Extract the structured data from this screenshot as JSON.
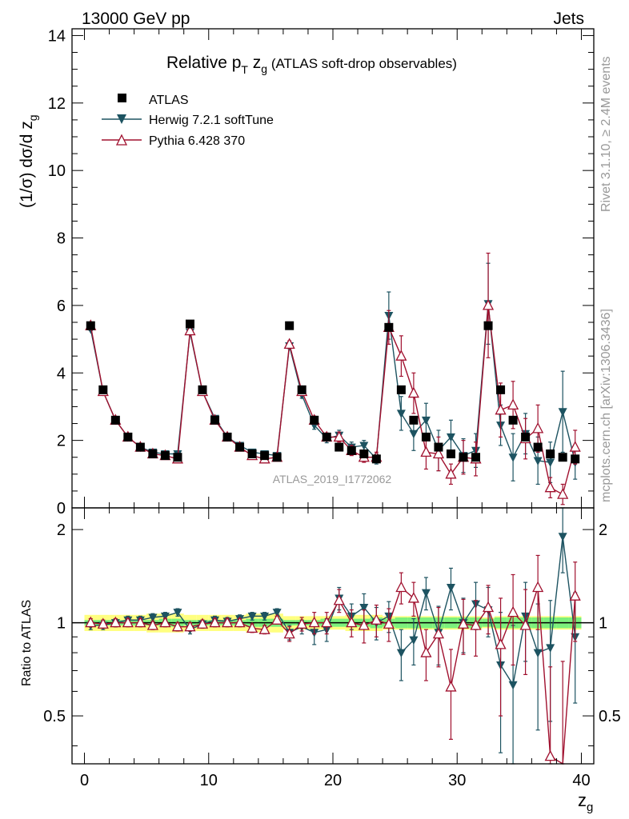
{
  "header": {
    "left": "13000 GeV pp",
    "right": "Jets"
  },
  "chart_data": {
    "type": "scatter",
    "title_main": "Relative p",
    "title_sub_T": "T",
    "title_z": " z",
    "title_sub_g": "g",
    "title_rest": " (ATLAS soft-drop observables)",
    "watermark": "ATLAS_2019_I1772062",
    "side_label_top": "Rivet 3.1.10, ≥ 2.4M events",
    "side_label_bottom": "mcplots.cern.ch [arXiv:1306.3436]",
    "ylabel_main": "(1/σ) dσ/d z",
    "ylabel_main_sub": "g",
    "ylabel_ratio": "Ratio to ATLAS",
    "xlabel": "z",
    "xlabel_sub": "g",
    "xlim": [
      -1,
      41
    ],
    "ylim_main": [
      0,
      14.2
    ],
    "ylim_ratio": [
      0.35,
      2.35
    ],
    "main_yticks": [
      "0",
      "2",
      "4",
      "6",
      "8",
      "10",
      "12",
      "14"
    ],
    "ratio_yticks": [
      "0.5",
      "1",
      "2"
    ],
    "xticks": [
      "0",
      "10",
      "20",
      "30",
      "40"
    ],
    "colors": {
      "atlas": "#000000",
      "herwig": "#1d5361",
      "pythia": "#a0102e",
      "band_outer": "#ffff80",
      "band_inner": "#7cf07c"
    },
    "x": [
      0.5,
      1.5,
      2.5,
      3.5,
      4.5,
      5.5,
      6.5,
      7.5,
      8.5,
      9.5,
      10.5,
      11.5,
      12.5,
      13.5,
      14.5,
      15.5,
      16.5,
      17.5,
      18.5,
      19.5,
      20.5,
      21.5,
      22.5,
      23.5,
      24.5,
      25.5,
      26.5,
      27.5,
      28.5,
      29.5,
      30.5,
      31.5,
      32.5,
      33.5,
      34.5,
      35.5,
      36.5,
      37.5,
      38.5,
      39.5
    ],
    "series": [
      {
        "name": "ATLAS",
        "marker": "square",
        "values": [
          5.4,
          3.5,
          2.6,
          2.1,
          1.8,
          1.6,
          1.55,
          1.5,
          5.45,
          3.5,
          2.6,
          2.1,
          1.8,
          1.6,
          1.55,
          1.5,
          5.4,
          3.5,
          2.6,
          2.1,
          1.8,
          1.7,
          1.6,
          1.45,
          5.35,
          3.5,
          2.6,
          2.1,
          1.8,
          1.6,
          1.5,
          1.5,
          5.4,
          3.5,
          2.6,
          2.1,
          1.8,
          1.6,
          1.5,
          1.45
        ],
        "ratio": [
          1,
          1,
          1,
          1,
          1,
          1,
          1,
          1,
          1,
          1,
          1,
          1,
          1,
          1,
          1,
          1,
          1,
          1,
          1,
          1,
          1,
          1,
          1,
          1,
          1,
          1,
          1,
          1,
          1,
          1,
          1,
          1,
          1,
          1,
          1,
          1,
          1,
          1,
          1,
          1
        ]
      },
      {
        "name": "Herwig 7.2.1 softTune",
        "marker": "triangle-down",
        "values": [
          5.3,
          3.45,
          2.6,
          2.1,
          1.8,
          1.65,
          1.6,
          1.6,
          5.2,
          3.45,
          2.65,
          2.1,
          1.85,
          1.65,
          1.6,
          1.55,
          4.8,
          3.35,
          2.45,
          2.05,
          2.15,
          1.8,
          1.85,
          1.45,
          5.7,
          2.8,
          2.2,
          2.6,
          1.7,
          2.1,
          1.55,
          1.7,
          6.05,
          2.45,
          1.5,
          2.2,
          1.4,
          1.35,
          2.85,
          1.35
        ],
        "errors": [
          0.05,
          0.06,
          0.06,
          0.05,
          0.05,
          0.06,
          0.06,
          0.06,
          0.06,
          0.06,
          0.06,
          0.06,
          0.06,
          0.06,
          0.06,
          0.06,
          0.08,
          0.1,
          0.12,
          0.12,
          0.15,
          0.15,
          0.15,
          0.15,
          0.7,
          0.5,
          0.5,
          0.5,
          0.6,
          0.5,
          0.5,
          0.5,
          1.2,
          0.6,
          0.7,
          0.6,
          0.7,
          0.6,
          1.2,
          0.5
        ],
        "ratio": [
          0.98,
          0.98,
          1.0,
          1.02,
          1.02,
          1.04,
          1.05,
          1.08,
          0.95,
          0.99,
          1.02,
          1.01,
          1.03,
          1.05,
          1.05,
          1.08,
          0.93,
          0.97,
          0.93,
          0.95,
          1.2,
          1.05,
          1.12,
          1.0,
          1.05,
          0.8,
          0.88,
          1.25,
          0.93,
          1.3,
          1.0,
          1.15,
          1.1,
          0.73,
          0.63,
          1.05,
          0.8,
          0.83,
          1.9,
          0.9
        ],
        "ratio_errors": [
          0.03,
          0.03,
          0.03,
          0.03,
          0.03,
          0.03,
          0.03,
          0.03,
          0.03,
          0.03,
          0.03,
          0.03,
          0.03,
          0.03,
          0.03,
          0.03,
          0.05,
          0.05,
          0.08,
          0.08,
          0.1,
          0.1,
          0.12,
          0.12,
          0.12,
          0.15,
          0.15,
          0.15,
          0.2,
          0.2,
          0.2,
          0.2,
          0.2,
          0.35,
          0.35,
          0.3,
          0.35,
          0.35,
          0.45,
          0.35
        ]
      },
      {
        "name": "Pythia 6.428 370",
        "marker": "triangle-up-open",
        "values": [
          5.4,
          3.45,
          2.6,
          2.1,
          1.8,
          1.6,
          1.55,
          1.45,
          5.25,
          3.45,
          2.6,
          2.1,
          1.8,
          1.55,
          1.45,
          1.5,
          4.85,
          3.45,
          2.6,
          2.1,
          2.1,
          1.7,
          1.5,
          1.5,
          5.35,
          4.5,
          3.4,
          1.65,
          1.6,
          1.0,
          1.5,
          1.45,
          6.0,
          2.9,
          3.05,
          2.05,
          2.35,
          0.6,
          0.4,
          1.8
        ],
        "errors": [
          0.05,
          0.06,
          0.06,
          0.05,
          0.05,
          0.06,
          0.06,
          0.06,
          0.06,
          0.06,
          0.06,
          0.06,
          0.06,
          0.06,
          0.06,
          0.06,
          0.1,
          0.1,
          0.12,
          0.12,
          0.15,
          0.15,
          0.15,
          0.15,
          0.5,
          0.6,
          0.6,
          0.5,
          0.5,
          0.3,
          0.5,
          0.5,
          1.55,
          0.8,
          0.7,
          0.6,
          0.7,
          0.3,
          0.3,
          0.5
        ],
        "ratio": [
          1.0,
          0.99,
          1.0,
          1.0,
          1.0,
          0.98,
          1.0,
          0.97,
          0.97,
          0.99,
          1.0,
          1.0,
          1.0,
          0.96,
          0.95,
          1.02,
          0.92,
          0.99,
          1.0,
          1.0,
          1.18,
          1.0,
          0.98,
          1.02,
          0.99,
          1.3,
          1.2,
          0.8,
          0.92,
          0.62,
          0.99,
          0.98,
          1.12,
          0.85,
          1.08,
          0.98,
          1.3,
          0.37,
          0.3,
          1.22
        ],
        "ratio_errors": [
          0.03,
          0.03,
          0.03,
          0.03,
          0.03,
          0.03,
          0.03,
          0.03,
          0.03,
          0.03,
          0.03,
          0.03,
          0.03,
          0.03,
          0.03,
          0.03,
          0.05,
          0.05,
          0.08,
          0.08,
          0.1,
          0.1,
          0.12,
          0.12,
          0.12,
          0.15,
          0.15,
          0.15,
          0.2,
          0.2,
          0.2,
          0.2,
          0.2,
          0.35,
          0.35,
          0.3,
          0.35,
          0.35,
          0.45,
          0.35
        ]
      }
    ],
    "band_inner": [
      0.02,
      0.02,
      0.02,
      0.02,
      0.02,
      0.02,
      0.03,
      0.03,
      0.02,
      0.02,
      0.02,
      0.02,
      0.02,
      0.03,
      0.03,
      0.03,
      0.02,
      0.02,
      0.02,
      0.03,
      0.03,
      0.03,
      0.03,
      0.04,
      0.03,
      0.04,
      0.04,
      0.04,
      0.04,
      0.04,
      0.04,
      0.04,
      0.03,
      0.04,
      0.04,
      0.04,
      0.04,
      0.04,
      0.04,
      0.04
    ],
    "band_outer": [
      0.06,
      0.06,
      0.06,
      0.06,
      0.06,
      0.07,
      0.07,
      0.07,
      0.06,
      0.06,
      0.06,
      0.06,
      0.06,
      0.07,
      0.07,
      0.07,
      0.05,
      0.05,
      0.05,
      0.05,
      0.05,
      0.06,
      0.06,
      0.06,
      0.05,
      0.05,
      0.05,
      0.05,
      0.05,
      0.05,
      0.05,
      0.05,
      0.04,
      0.05,
      0.05,
      0.05,
      0.05,
      0.05,
      0.05,
      0.05
    ]
  }
}
